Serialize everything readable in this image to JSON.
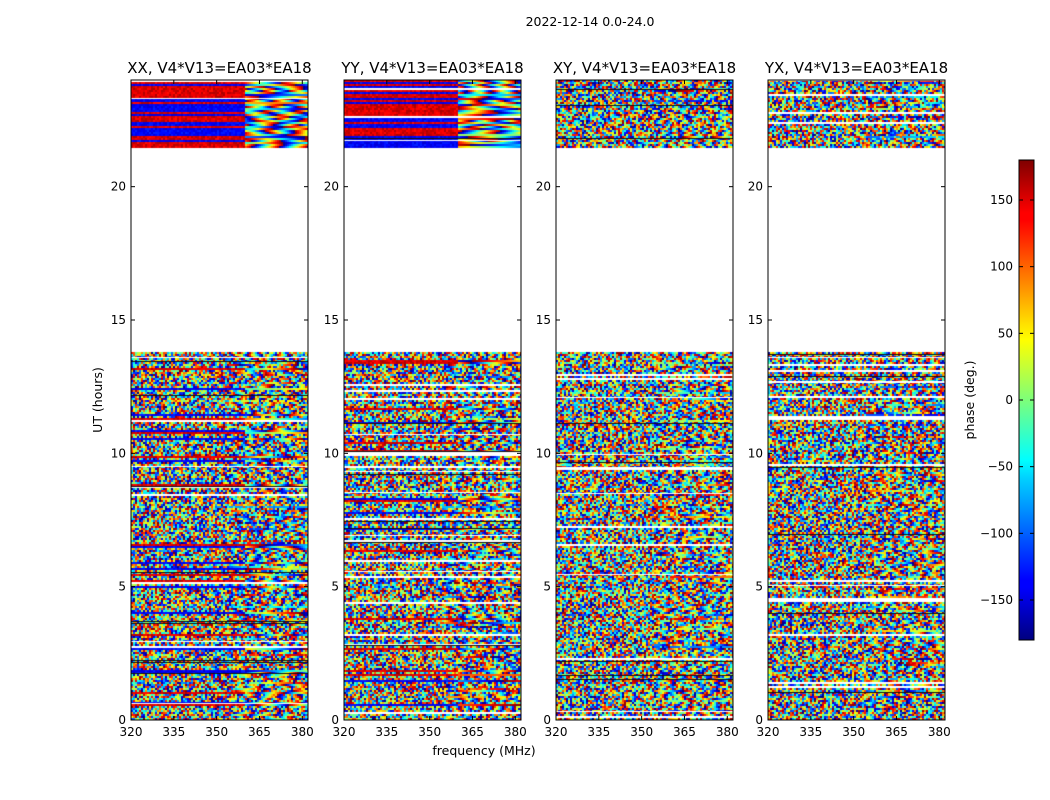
{
  "chart_data": {
    "type": "heatmap",
    "title": "2022-12-14 0.0-24.0",
    "xlabel": "frequency (MHz)",
    "ylabel": "UT (hours)",
    "xlim": [
      320,
      382
    ],
    "ylim": [
      0,
      24
    ],
    "xticks": [
      320,
      335,
      350,
      365,
      380
    ],
    "yticks": [
      0,
      5,
      10,
      15,
      20
    ],
    "panels": [
      {
        "title": "XX, V4*V13=EA03*EA18",
        "pol": "XX"
      },
      {
        "title": "YY, V4*V13=EA03*EA18",
        "pol": "YY"
      },
      {
        "title": "XY, V4*V13=EA03*EA18",
        "pol": "XY"
      },
      {
        "title": "YX, V4*V13=EA03*EA18",
        "pol": "YX"
      }
    ],
    "data_gap_hours": [
      13.8,
      21.5
    ],
    "colorbar": {
      "label": "phase (deg.)",
      "colormap": "jet",
      "range": [
        -180,
        180
      ],
      "ticks": [
        -150,
        -100,
        -50,
        0,
        50,
        100,
        150
      ],
      "tick_labels": [
        "−150",
        "−100",
        "−50",
        "0",
        "50",
        "100",
        "150"
      ]
    }
  }
}
